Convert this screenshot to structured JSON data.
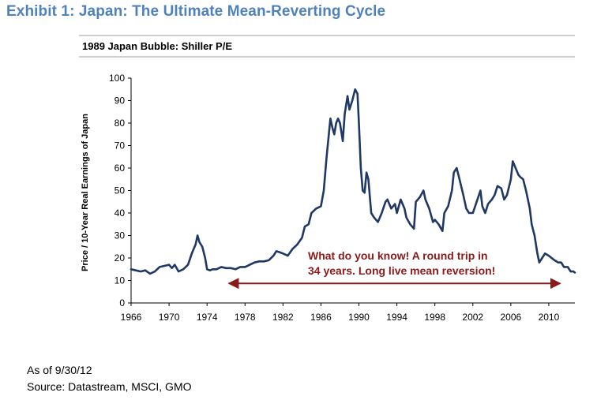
{
  "exhibit_title": "Exhibit 1: Japan: The Ultimate Mean-Reverting Cycle",
  "footer": {
    "as_of": "As of 9/30/12",
    "source": "Source: Datastream, MSCI, GMO"
  },
  "colors": {
    "title": "#4f81bd",
    "series": "#1f3864",
    "annotation": "#8b1a1a"
  },
  "chart_data": {
    "type": "line",
    "title": "1989 Japan Bubble: Shiller P/E",
    "ylabel": "Price / 10-Year Real Earnings of Japan",
    "xlabel": "",
    "xlim": [
      1966,
      2012.75
    ],
    "ylim": [
      0,
      100
    ],
    "x_ticks": [
      1966,
      1970,
      1974,
      1978,
      1982,
      1986,
      1990,
      1994,
      1998,
      2002,
      2006,
      2010
    ],
    "y_ticks": [
      0,
      10,
      20,
      30,
      40,
      50,
      60,
      70,
      80,
      90,
      100
    ],
    "grid": false,
    "series": [
      {
        "name": "Shiller P/E",
        "x": [
          1966,
          1966.5,
          1967,
          1967.5,
          1968,
          1968.5,
          1969,
          1969.5,
          1970,
          1970.3,
          1970.6,
          1971,
          1971.5,
          1972,
          1972.4,
          1972.8,
          1973,
          1973.2,
          1973.5,
          1973.8,
          1974,
          1974.3,
          1974.6,
          1975,
          1975.5,
          1976,
          1976.5,
          1977,
          1977.5,
          1978,
          1978.5,
          1979,
          1979.5,
          1980,
          1980.5,
          1981,
          1981.3,
          1981.7,
          1982,
          1982.5,
          1983,
          1983.5,
          1984,
          1984.3,
          1984.7,
          1985,
          1985.5,
          1986,
          1986.3,
          1986.6,
          1987,
          1987.2,
          1987.4,
          1987.6,
          1987.8,
          1988,
          1988.3,
          1988.5,
          1988.8,
          1989,
          1989.3,
          1989.6,
          1989.85,
          1990,
          1990.2,
          1990.4,
          1990.6,
          1990.8,
          1991,
          1991.3,
          1991.6,
          1992,
          1992.4,
          1992.8,
          1993,
          1993.4,
          1993.8,
          1994,
          1994.4,
          1994.8,
          1995,
          1995.4,
          1995.8,
          1996,
          1996.4,
          1996.8,
          1997,
          1997.4,
          1997.8,
          1998,
          1998.4,
          1998.8,
          1999,
          1999.4,
          1999.8,
          2000,
          2000.3,
          2000.6,
          2001,
          2001.3,
          2001.6,
          2002,
          2002.4,
          2002.8,
          2003,
          2003.3,
          2003.6,
          2004,
          2004.3,
          2004.6,
          2005,
          2005.3,
          2005.6,
          2006,
          2006.2,
          2006.5,
          2006.8,
          2007,
          2007.3,
          2007.6,
          2008,
          2008.2,
          2008.5,
          2008.8,
          2009,
          2009.3,
          2009.6,
          2010,
          2010.3,
          2010.6,
          2011,
          2011.3,
          2011.6,
          2012,
          2012.3,
          2012.6,
          2012.75
        ],
        "values": [
          15,
          14.5,
          14,
          14.5,
          13,
          14,
          16,
          16.5,
          17,
          15.5,
          17,
          14,
          15,
          17,
          22,
          26,
          30,
          27,
          25,
          20,
          15,
          14.5,
          15,
          15,
          16,
          15.5,
          15.5,
          15,
          16,
          16,
          17,
          18,
          18.5,
          18.5,
          19,
          21,
          23,
          22.5,
          22,
          21,
          24,
          26,
          29,
          34,
          35,
          40,
          42,
          43,
          50,
          65,
          82,
          78,
          75,
          80,
          82,
          80,
          72,
          84,
          92,
          86,
          90,
          95,
          93,
          80,
          60,
          50,
          49,
          58,
          55,
          40,
          38,
          36,
          40,
          45,
          46,
          42,
          44,
          40,
          46,
          42,
          38,
          35,
          33,
          45,
          47,
          50,
          46,
          42,
          36,
          37,
          35,
          32,
          40,
          43,
          50,
          58,
          60,
          55,
          48,
          42,
          40,
          40,
          45,
          50,
          43,
          40,
          44,
          46,
          48,
          52,
          51,
          46,
          48,
          55,
          63,
          60,
          57,
          56,
          55,
          50,
          42,
          35,
          30,
          22,
          18,
          20,
          22,
          21,
          20,
          19,
          18,
          18,
          16,
          16,
          14,
          14,
          13.5
        ]
      }
    ],
    "annotations": [
      {
        "text_line1": "What do you know! A round trip in",
        "text_line2": "34 years. Long live mean reversion!",
        "arrow_from": 1976.3,
        "arrow_to": 2011.2,
        "arrow_y": 8.7
      }
    ]
  }
}
